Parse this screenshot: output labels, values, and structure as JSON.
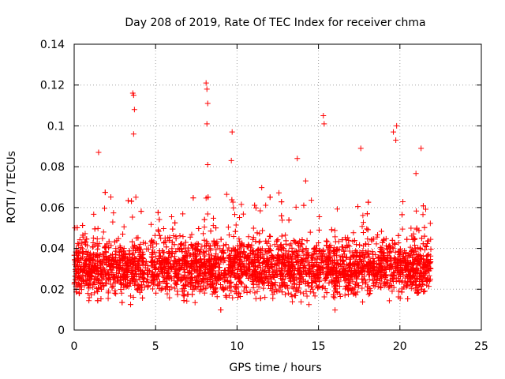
{
  "chart_data": {
    "type": "scatter",
    "title": "Day 208 of 2019, Rate Of TEC Index for receiver chma",
    "xlabel": "GPS time / hours",
    "ylabel": "ROTI / TECUs",
    "xlim": [
      0,
      25
    ],
    "ylim": [
      0,
      0.14
    ],
    "x_ticks": [
      0,
      5,
      10,
      15,
      20,
      25
    ],
    "y_ticks": [
      0,
      0.02,
      0.04,
      0.06,
      0.08,
      0.1,
      0.12,
      0.14
    ],
    "x_tick_labels": [
      "0",
      "5",
      "10",
      "15",
      "20",
      "25"
    ],
    "y_tick_labels": [
      "0",
      "0.02",
      "0.04",
      "0.06",
      "0.08",
      "0.1",
      "0.12",
      "0.14"
    ],
    "grid": true,
    "marker": "+",
    "color": "#ff0000",
    "series": [
      {
        "name": "ROTI",
        "data_range_hours": [
          0,
          21.9
        ],
        "typical_range": [
          0.01,
          0.045
        ],
        "spikes": [
          {
            "x": 1.5,
            "y": 0.087
          },
          {
            "x": 3.6,
            "y": 0.116
          },
          {
            "x": 3.65,
            "y": 0.115
          },
          {
            "x": 3.7,
            "y": 0.108
          },
          {
            "x": 3.65,
            "y": 0.096
          },
          {
            "x": 8.1,
            "y": 0.121
          },
          {
            "x": 8.15,
            "y": 0.118
          },
          {
            "x": 8.2,
            "y": 0.111
          },
          {
            "x": 8.15,
            "y": 0.101
          },
          {
            "x": 8.2,
            "y": 0.081
          },
          {
            "x": 9.7,
            "y": 0.097
          },
          {
            "x": 9.65,
            "y": 0.083
          },
          {
            "x": 13.7,
            "y": 0.084
          },
          {
            "x": 15.3,
            "y": 0.105
          },
          {
            "x": 15.35,
            "y": 0.101
          },
          {
            "x": 17.6,
            "y": 0.089
          },
          {
            "x": 19.6,
            "y": 0.097
          },
          {
            "x": 19.8,
            "y": 0.1
          },
          {
            "x": 19.75,
            "y": 0.093
          },
          {
            "x": 21.3,
            "y": 0.089
          }
        ]
      }
    ]
  }
}
